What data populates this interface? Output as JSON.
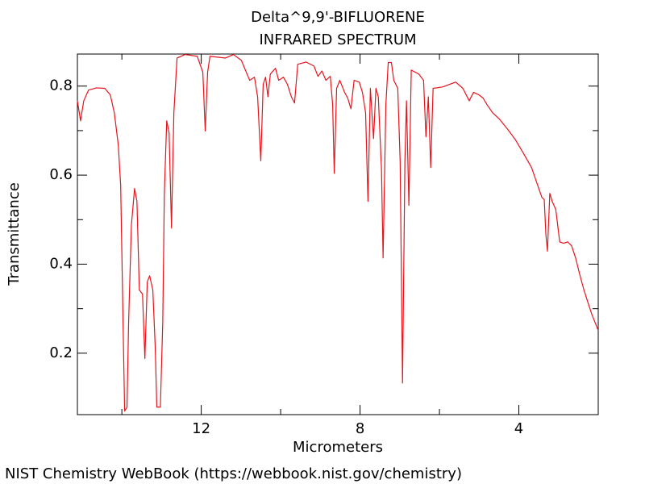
{
  "chart_data": {
    "type": "line",
    "title": "Delta^9,9'-BIFLUORENE",
    "subtitle": "INFRARED SPECTRUM",
    "x_label": "Micrometers",
    "y_label": "Transmittance",
    "color": "#e8141c",
    "x": [
      15.12,
      15.04,
      14.96,
      14.84,
      14.64,
      14.43,
      14.29,
      14.19,
      14.09,
      14.03,
      13.97,
      13.93,
      13.87,
      13.83,
      13.76,
      13.68,
      13.62,
      13.56,
      13.48,
      13.42,
      13.36,
      13.3,
      13.22,
      13.16,
      13.12,
      13.03,
      12.97,
      12.93,
      12.87,
      12.81,
      12.75,
      12.69,
      12.61,
      12.41,
      12.1,
      11.96,
      11.9,
      11.84,
      11.78,
      11.39,
      11.19,
      10.99,
      10.78,
      10.66,
      10.58,
      10.5,
      10.44,
      10.38,
      10.32,
      10.26,
      10.13,
      10.05,
      9.93,
      9.83,
      9.73,
      9.65,
      9.57,
      9.36,
      9.16,
      9.06,
      8.96,
      8.86,
      8.75,
      8.69,
      8.65,
      8.59,
      8.51,
      8.39,
      8.31,
      8.23,
      8.15,
      8.02,
      7.94,
      7.86,
      7.8,
      7.74,
      7.66,
      7.6,
      7.54,
      7.46,
      7.42,
      7.35,
      7.29,
      7.21,
      7.15,
      7.05,
      6.99,
      6.93,
      6.87,
      6.83,
      6.77,
      6.71,
      6.52,
      6.4,
      6.34,
      6.28,
      6.22,
      6.16,
      5.92,
      5.71,
      5.59,
      5.41,
      5.25,
      5.14,
      5.0,
      4.9,
      4.8,
      4.66,
      4.49,
      4.29,
      4.09,
      3.89,
      3.68,
      3.56,
      3.42,
      3.36,
      3.32,
      3.28,
      3.22,
      3.16,
      3.07,
      2.97,
      2.87,
      2.77,
      2.67,
      2.57,
      2.47,
      2.36,
      2.26,
      2.16,
      2.0
    ],
    "values": [
      0.767,
      0.722,
      0.767,
      0.791,
      0.796,
      0.795,
      0.78,
      0.74,
      0.668,
      0.577,
      0.269,
      0.07,
      0.079,
      0.269,
      0.487,
      0.57,
      0.541,
      0.342,
      0.333,
      0.188,
      0.36,
      0.374,
      0.342,
      0.215,
      0.079,
      0.079,
      0.269,
      0.559,
      0.722,
      0.695,
      0.481,
      0.74,
      0.863,
      0.871,
      0.867,
      0.831,
      0.699,
      0.831,
      0.867,
      0.863,
      0.871,
      0.858,
      0.813,
      0.82,
      0.776,
      0.632,
      0.804,
      0.82,
      0.776,
      0.827,
      0.84,
      0.813,
      0.82,
      0.804,
      0.776,
      0.762,
      0.849,
      0.854,
      0.845,
      0.822,
      0.834,
      0.813,
      0.822,
      0.758,
      0.604,
      0.795,
      0.813,
      0.786,
      0.773,
      0.749,
      0.813,
      0.809,
      0.786,
      0.74,
      0.541,
      0.795,
      0.682,
      0.795,
      0.776,
      0.613,
      0.414,
      0.758,
      0.853,
      0.853,
      0.813,
      0.795,
      0.632,
      0.133,
      0.632,
      0.767,
      0.532,
      0.836,
      0.827,
      0.813,
      0.686,
      0.776,
      0.617,
      0.795,
      0.798,
      0.805,
      0.809,
      0.795,
      0.767,
      0.786,
      0.78,
      0.773,
      0.758,
      0.74,
      0.726,
      0.704,
      0.68,
      0.65,
      0.617,
      0.586,
      0.55,
      0.545,
      0.468,
      0.429,
      0.559,
      0.541,
      0.523,
      0.45,
      0.447,
      0.45,
      0.441,
      0.414,
      0.378,
      0.342,
      0.314,
      0.287,
      0.251
    ],
    "xlim": [
      15.12,
      2.0
    ],
    "ylim": [
      0.062,
      0.872
    ],
    "xticks": [
      12,
      8,
      4
    ],
    "xticks_minor": [
      14,
      10,
      6
    ],
    "yticks": [
      0.2,
      0.4,
      0.6,
      0.8
    ],
    "yticks_minor": [
      0.3,
      0.5,
      0.7
    ]
  },
  "footer": "NIST Chemistry WebBook (https://webbook.nist.gov/chemistry)"
}
